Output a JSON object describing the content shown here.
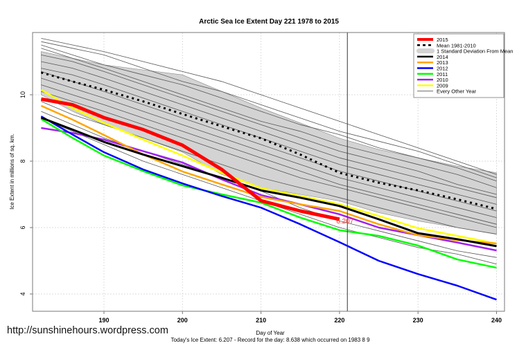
{
  "chart_data": {
    "type": "line",
    "title": "Arctic Sea Ice Extent Day 221 1978 to 2015",
    "xlabel": "Day of Year",
    "ylabel": "Ice Extent in millions of sq. km.",
    "subtitle": "Today's Ice Extent: 6.207  - Record for the day: 8.638 which occurred on 1983 8 9",
    "xlim": [
      181,
      241
    ],
    "ylim": [
      3.55,
      11.95
    ],
    "xticks": [
      "190",
      "200",
      "210",
      "220",
      "230",
      "240"
    ],
    "yticks": [
      "4",
      "6",
      "8",
      "10"
    ],
    "grid": true,
    "legend_position": "top-right",
    "current_day": 221,
    "current_value_label": "6.207",
    "x": [
      182,
      186,
      190,
      195,
      200,
      205,
      210,
      215,
      220,
      225,
      230,
      235,
      240
    ],
    "series": [
      {
        "name": "2015",
        "color": "#ff0000",
        "width": 5,
        "values": [
          9.87,
          9.7,
          9.31,
          8.95,
          8.48,
          7.75,
          6.81,
          6.5,
          6.25,
          null,
          null,
          null,
          null
        ]
      },
      {
        "name": "2014",
        "color": "#000000",
        "width": 3,
        "values": [
          9.31,
          8.95,
          8.58,
          8.2,
          7.85,
          7.5,
          7.12,
          6.9,
          6.65,
          6.25,
          5.83,
          5.65,
          5.44
        ]
      },
      {
        "name": "2013",
        "color": "#ffa500",
        "width": 2.5,
        "values": [
          9.67,
          9.25,
          8.79,
          8.2,
          7.69,
          7.3,
          6.92,
          6.7,
          6.5,
          6.1,
          5.77,
          5.62,
          5.52
        ]
      },
      {
        "name": "2012",
        "color": "#0000ff",
        "width": 2.5,
        "values": [
          9.35,
          8.8,
          8.27,
          7.75,
          7.33,
          6.95,
          6.6,
          6.1,
          5.56,
          5.0,
          4.6,
          4.25,
          3.83
        ]
      },
      {
        "name": "2011",
        "color": "#00ff00",
        "width": 2.5,
        "values": [
          9.27,
          8.7,
          8.17,
          7.7,
          7.27,
          7.0,
          6.75,
          6.3,
          5.92,
          5.75,
          5.46,
          5.04,
          4.79
        ]
      },
      {
        "name": "2010",
        "color": "#a020f0",
        "width": 2.5,
        "values": [
          9.0,
          8.85,
          8.65,
          8.3,
          7.96,
          7.45,
          6.98,
          6.7,
          6.4,
          6.0,
          5.77,
          5.55,
          5.31
        ]
      },
      {
        "name": "2009",
        "color": "#ffff00",
        "width": 2.5,
        "values": [
          10.15,
          9.6,
          9.15,
          8.65,
          8.17,
          7.65,
          7.19,
          6.95,
          6.7,
          6.35,
          5.98,
          5.75,
          5.52
        ]
      }
    ],
    "mean": {
      "name": "Mean 1981-2010",
      "values": [
        10.67,
        10.4,
        10.15,
        9.8,
        9.42,
        9.05,
        8.69,
        8.2,
        7.65,
        7.35,
        7.12,
        6.85,
        6.56
      ]
    },
    "std_band": {
      "name": "1 Standard Deviation From Mean",
      "upper": [
        11.3,
        11.1,
        10.9,
        10.75,
        10.6,
        10.1,
        9.6,
        9.15,
        8.69,
        8.35,
        8.1,
        7.85,
        7.65
      ],
      "lower": [
        10.0,
        9.5,
        9.1,
        8.7,
        8.27,
        7.6,
        7.2,
        7.0,
        6.8,
        6.45,
        6.2,
        6.0,
        5.81
      ]
    },
    "other_years": {
      "name": "Every Other Year",
      "color": "#555555",
      "lines": [
        [
          11.7,
          11.5,
          11.3,
          11.0,
          10.7,
          10.4,
          10.0,
          9.6,
          9.2,
          8.8,
          8.4,
          8.0,
          7.6
        ],
        [
          11.6,
          11.4,
          11.2,
          10.8,
          10.4,
          10.1,
          9.7,
          9.3,
          8.9,
          8.6,
          8.3,
          7.9,
          7.5
        ],
        [
          11.5,
          11.2,
          10.9,
          10.6,
          10.3,
          9.9,
          9.5,
          9.1,
          8.8,
          8.4,
          8.1,
          7.8,
          7.4
        ],
        [
          11.4,
          11.1,
          10.8,
          10.4,
          10.0,
          9.6,
          9.2,
          8.9,
          8.5,
          8.2,
          7.9,
          7.6,
          7.2
        ],
        [
          11.2,
          11.0,
          10.7,
          10.3,
          9.9,
          9.5,
          9.1,
          8.7,
          8.3,
          8.0,
          7.7,
          7.3,
          7.0
        ],
        [
          11.0,
          10.8,
          10.5,
          10.1,
          9.7,
          9.3,
          8.9,
          8.5,
          8.1,
          7.8,
          7.5,
          7.2,
          6.9
        ],
        [
          10.8,
          10.6,
          10.3,
          9.9,
          9.5,
          9.1,
          8.7,
          8.3,
          7.9,
          7.6,
          7.3,
          7.0,
          6.7
        ],
        [
          10.7,
          10.4,
          10.1,
          9.7,
          9.3,
          8.9,
          8.5,
          8.1,
          7.7,
          7.4,
          7.1,
          6.8,
          6.5
        ],
        [
          10.5,
          10.2,
          9.9,
          9.5,
          9.1,
          8.7,
          8.3,
          7.9,
          7.5,
          7.2,
          6.9,
          6.6,
          6.3
        ],
        [
          10.3,
          10.0,
          9.7,
          9.3,
          8.9,
          8.5,
          8.1,
          7.7,
          7.3,
          7.0,
          6.7,
          6.4,
          6.1
        ],
        [
          10.1,
          9.8,
          9.5,
          9.1,
          8.7,
          8.3,
          7.9,
          7.5,
          7.2,
          6.9,
          6.6,
          6.3,
          6.0
        ],
        [
          9.8,
          9.4,
          9.1,
          8.7,
          8.3,
          7.9,
          7.5,
          7.2,
          6.9,
          6.6,
          6.3,
          6.0,
          5.8
        ],
        [
          9.5,
          9.1,
          8.7,
          8.3,
          7.9,
          7.5,
          7.1,
          6.6,
          6.2,
          5.9,
          5.6,
          5.3,
          5.1
        ],
        [
          9.3,
          8.9,
          8.5,
          8.0,
          7.6,
          7.2,
          6.8,
          6.4,
          6.0,
          5.7,
          5.4,
          5.2,
          4.9
        ]
      ]
    }
  },
  "watermark": "http://sunshinehours.wordpress.com"
}
